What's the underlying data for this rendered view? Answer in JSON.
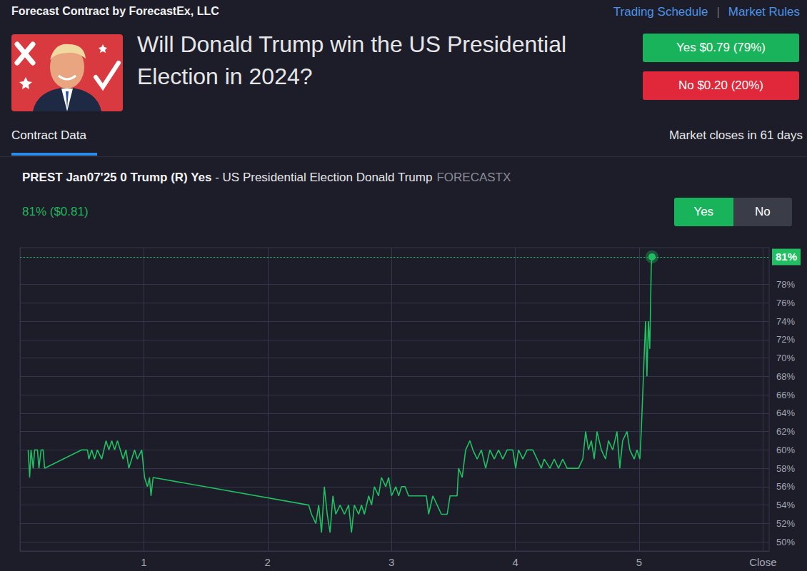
{
  "header": {
    "title": "Forecast Contract by ForecastEx, LLC",
    "links": [
      "Trading Schedule",
      "Market Rules"
    ],
    "separator": "|"
  },
  "contract": {
    "question": "Will Donald Trump win the US Presidential Election in 2024?",
    "buttons": [
      {
        "label": "Yes $0.79 (79%)",
        "color": "#18b35a"
      },
      {
        "label": "No $0.20 (20%)",
        "color": "#e0283a"
      }
    ]
  },
  "tabs": {
    "active": "Contract Data",
    "closes": "Market closes in 61 days"
  },
  "instrument": {
    "symbol": "PREST Jan07'25 0 Trump (R) Yes",
    "description": "- US Presidential Election Donald Trump",
    "exchange": "FORECASTX",
    "price": "81% ($0.81)",
    "toggle": [
      "Yes",
      "No"
    ]
  },
  "chart_data": {
    "type": "line",
    "color": "#1fbf62",
    "x": [
      0.066,
      0.078,
      0.089,
      0.107,
      0.118,
      0.141,
      0.153,
      0.17,
      0.187,
      0.199,
      0.499,
      0.545,
      0.556,
      0.579,
      0.602,
      0.625,
      0.66,
      0.695,
      0.718,
      0.741,
      0.764,
      0.787,
      0.81,
      0.833,
      0.856,
      0.879,
      0.902,
      0.925,
      0.948,
      0.983,
      1.006,
      1.029,
      1.046,
      1.058,
      1.075,
      2.331,
      2.354,
      2.389,
      2.412,
      2.435,
      2.458,
      2.481,
      2.504,
      2.527,
      2.55,
      2.585,
      2.62,
      2.654,
      2.677,
      2.7,
      2.735,
      2.758,
      2.781,
      2.816,
      2.839,
      2.862,
      2.896,
      2.919,
      2.954,
      2.977,
      3.0,
      3.035,
      3.058,
      3.081,
      3.11,
      3.138,
      3.282,
      3.3,
      3.334,
      3.369,
      3.403,
      3.45,
      3.473,
      3.53,
      3.542,
      3.571,
      3.599,
      3.634,
      3.657,
      3.692,
      3.726,
      3.761,
      3.795,
      3.83,
      3.865,
      3.899,
      3.934,
      3.98,
      4.003,
      4.026,
      4.061,
      4.095,
      4.141,
      4.176,
      4.21,
      4.233,
      4.28,
      4.314,
      4.349,
      4.383,
      4.418,
      4.464,
      4.51,
      4.545,
      4.568,
      4.591,
      4.614,
      4.637,
      4.66,
      4.695,
      4.729,
      4.752,
      4.787,
      4.821,
      4.844,
      4.867,
      4.902,
      4.925,
      4.96,
      4.983,
      5.006,
      5.017,
      5.029,
      5.04,
      5.052,
      5.063,
      5.075,
      5.086,
      5.098,
      5.104
    ],
    "values": [
      60,
      57,
      60,
      58,
      60,
      60,
      58,
      60,
      60,
      58,
      60,
      60,
      59,
      60,
      59,
      60,
      59,
      61,
      60,
      61,
      60,
      61,
      60,
      59,
      60,
      58,
      59,
      60,
      59,
      60,
      57,
      56,
      57,
      55,
      57,
      54,
      53,
      52,
      54,
      51,
      56,
      53,
      51,
      55,
      53,
      54,
      53,
      54,
      51,
      54,
      53,
      54,
      53,
      55,
      54,
      56,
      55,
      57,
      56,
      57,
      55,
      56,
      55,
      56,
      56,
      55,
      55,
      53,
      55,
      54,
      53,
      53,
      55,
      55,
      58,
      57,
      60,
      61,
      60,
      59,
      60,
      58,
      60,
      59,
      60,
      59,
      60,
      60,
      58,
      60,
      59,
      60,
      60,
      59,
      58,
      59,
      58,
      59,
      58,
      59,
      58,
      58,
      58,
      59,
      62,
      60,
      61,
      59,
      62,
      60,
      59,
      61,
      60,
      62,
      58,
      61,
      62,
      60,
      59,
      60,
      59,
      62,
      66,
      70,
      74,
      68,
      74,
      71,
      80,
      81
    ],
    "xlim": [
      0,
      6.05
    ],
    "xticks": [
      1,
      2,
      3,
      4,
      5,
      {
        "value": 6,
        "label": "Close"
      }
    ],
    "ylim": [
      49,
      82
    ],
    "yticks": [
      {
        "value": 50,
        "label": "50%"
      },
      {
        "value": 52,
        "label": "52%"
      },
      {
        "value": 54,
        "label": "54%"
      },
      {
        "value": 56,
        "label": "56%"
      },
      {
        "value": 58,
        "label": "58%"
      },
      {
        "value": 60,
        "label": "60%"
      },
      {
        "value": 62,
        "label": "62%"
      },
      {
        "value": 64,
        "label": "64%"
      },
      {
        "value": 66,
        "label": "66%"
      },
      {
        "value": 68,
        "label": "68%"
      },
      {
        "value": 70,
        "label": "70%"
      },
      {
        "value": 72,
        "label": "72%"
      },
      {
        "value": 74,
        "label": "74%"
      },
      {
        "value": 76,
        "label": "76%"
      },
      {
        "value": 78,
        "label": "78%"
      }
    ],
    "grid": true,
    "annotations": [
      {
        "y": 81,
        "label": "81%"
      }
    ]
  }
}
